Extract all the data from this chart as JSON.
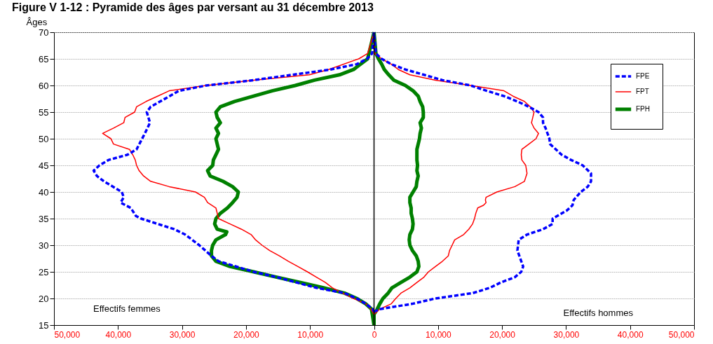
{
  "chart_data": {
    "type": "line",
    "orientation": "horizontal",
    "title": "Figure V 1-12 : Pyramide des âges par versant au 31 décembre 2013",
    "ylabel": "Âges",
    "annotations": [
      "Effectifs femmes",
      "Effectifs hommes"
    ],
    "xlim": [
      -50000,
      50000
    ],
    "xticks": [
      {
        "value": -50000,
        "label": "50,000"
      },
      {
        "value": -40000,
        "label": "40,000"
      },
      {
        "value": -30000,
        "label": "30,000"
      },
      {
        "value": -20000,
        "label": "20,000"
      },
      {
        "value": -10000,
        "label": "10,000"
      },
      0,
      {
        "value": 10000,
        "label": "10,000"
      },
      {
        "value": 20000,
        "label": "20,000"
      },
      {
        "value": 30000,
        "label": "30,000"
      },
      {
        "value": 40000,
        "label": "40,000"
      },
      {
        "value": 50000,
        "label": "50,000"
      }
    ],
    "ylim": [
      15,
      70
    ],
    "yticks": [
      15,
      20,
      25,
      30,
      35,
      40,
      45,
      50,
      55,
      60,
      65,
      70
    ],
    "grid": "y",
    "legend": "top right",
    "marker": "none",
    "ref_lines": [
      {
        "axis": "x",
        "value": 0,
        "color": "#000000"
      }
    ],
    "series": [
      {
        "name": "FPE",
        "color": "#0000ff",
        "line_style": "dashed",
        "x": [
          70,
          66,
          65,
          64,
          63,
          61,
          60,
          59,
          57,
          56,
          55,
          53,
          51,
          48,
          47,
          46,
          45,
          44,
          43,
          42,
          40,
          39,
          38,
          37,
          35.5,
          35,
          33,
          32,
          30,
          28,
          27,
          25,
          24,
          22,
          21,
          20,
          19,
          18,
          17.5
        ],
        "values": [
          0,
          -300,
          -1100,
          -2700,
          -6800,
          -18800,
          -26200,
          -30500,
          -33400,
          -34900,
          -35500,
          -35000,
          -35800,
          -37100,
          -38500,
          -41500,
          -42900,
          -43800,
          -43300,
          -42200,
          -39400,
          -39100,
          -39600,
          -38000,
          -37200,
          -36400,
          -31200,
          -29500,
          -27300,
          -25400,
          -24300,
          -18800,
          -15200,
          -9000,
          -4600,
          -2700,
          -1300,
          -200,
          0
        ]
      },
      {
        "color": "#0000ff",
        "line_style": "dashed",
        "x": [
          17.5,
          18,
          19,
          20,
          21,
          22,
          23,
          24,
          25,
          26,
          27,
          29,
          31,
          32,
          33,
          34,
          35,
          36.5,
          37.5,
          38.5,
          40,
          41,
          42,
          43.5,
          45,
          46,
          47,
          49,
          50,
          52,
          53,
          54,
          55,
          56,
          57,
          58,
          59,
          60,
          61,
          62,
          63,
          64,
          65,
          66,
          70
        ],
        "values": [
          0,
          900,
          6000,
          9600,
          15400,
          18100,
          19800,
          22000,
          23000,
          23300,
          23000,
          22400,
          22600,
          23900,
          26400,
          27900,
          27900,
          30100,
          31000,
          31200,
          32300,
          33400,
          33900,
          33900,
          32600,
          30800,
          29300,
          27500,
          27400,
          26800,
          26400,
          26400,
          25700,
          24200,
          22400,
          20300,
          17600,
          15100,
          10700,
          7800,
          4900,
          2700,
          1200,
          300,
          0
        ]
      },
      {
        "name": "FPT",
        "color": "#ff0000",
        "line_style": "solid",
        "x": [
          70,
          66,
          65,
          63,
          62,
          61,
          60,
          59,
          58,
          57,
          56,
          55,
          54,
          53,
          52,
          51,
          50,
          49,
          48,
          47,
          46,
          45,
          44,
          43,
          42,
          41,
          40,
          39,
          38,
          37,
          35,
          34,
          33,
          32,
          31,
          30,
          29,
          28,
          27,
          26,
          25,
          24,
          23,
          22,
          21,
          20,
          19,
          18,
          17
        ],
        "values": [
          0,
          -1000,
          -2400,
          -7100,
          -10100,
          -18800,
          -26200,
          -32000,
          -33800,
          -35600,
          -37100,
          -37400,
          -38900,
          -39100,
          -40700,
          -42400,
          -41100,
          -40700,
          -38200,
          -37700,
          -37300,
          -37100,
          -36700,
          -36000,
          -34900,
          -32000,
          -27900,
          -26500,
          -26000,
          -24700,
          -24300,
          -22500,
          -20700,
          -19200,
          -18500,
          -17500,
          -16300,
          -14800,
          -13400,
          -11900,
          -10400,
          -9000,
          -7600,
          -6500,
          -4900,
          -3200,
          -1300,
          -500,
          0
        ]
      },
      {
        "color": "#ff0000",
        "line_style": "solid",
        "x": [
          17,
          18,
          19,
          20,
          21,
          22,
          23,
          24,
          25,
          26,
          27,
          28,
          29,
          30,
          31,
          31.5,
          32,
          33,
          34,
          35,
          36,
          37,
          37.5,
          38,
          38.5,
          39,
          40,
          41,
          42,
          43.5,
          45,
          46,
          47,
          48,
          49,
          50,
          51,
          52,
          53,
          54,
          55,
          56,
          57,
          58,
          59,
          60,
          61,
          62,
          63,
          64,
          65,
          66,
          70
        ],
        "values": [
          0,
          900,
          2700,
          3400,
          4200,
          5600,
          6700,
          7800,
          8500,
          9600,
          10700,
          11600,
          11800,
          12200,
          12600,
          13300,
          14000,
          14800,
          15400,
          15700,
          15900,
          16200,
          17100,
          17500,
          17400,
          17500,
          19200,
          22000,
          23500,
          23900,
          23700,
          23100,
          23000,
          23100,
          24200,
          25300,
          25700,
          25000,
          24600,
          24800,
          25000,
          24400,
          23500,
          21700,
          20300,
          15100,
          9600,
          5600,
          3800,
          2700,
          1200,
          100,
          0
        ]
      },
      {
        "name": "FPH",
        "color": "#008000",
        "line_style": "solid",
        "x": [
          70,
          65,
          64,
          63,
          62,
          61,
          60,
          59,
          58,
          57,
          56,
          55,
          54,
          53,
          52,
          51,
          50,
          49,
          48,
          47,
          46,
          45,
          44,
          43,
          42,
          41,
          40,
          39,
          38,
          37,
          36,
          35,
          34,
          33,
          32.5,
          32,
          31,
          30,
          29,
          28,
          27,
          26,
          25,
          24,
          23,
          22,
          21,
          20,
          19,
          18,
          15
        ],
        "values": [
          0,
          -1000,
          -2100,
          -3200,
          -5400,
          -9300,
          -12300,
          -15900,
          -18800,
          -21800,
          -24000,
          -24700,
          -24500,
          -24000,
          -24700,
          -24300,
          -24700,
          -24500,
          -24300,
          -24700,
          -25100,
          -25200,
          -26000,
          -25600,
          -23600,
          -22100,
          -21200,
          -21400,
          -22100,
          -22900,
          -24000,
          -24700,
          -24900,
          -24500,
          -23000,
          -23200,
          -24700,
          -25200,
          -25400,
          -25400,
          -24700,
          -22500,
          -18800,
          -15200,
          -11500,
          -7900,
          -4600,
          -2700,
          -1300,
          -400,
          0
        ]
      },
      {
        "color": "#008000",
        "line_style": "solid",
        "x": [
          15,
          17,
          18,
          19,
          20,
          21,
          22,
          23,
          24,
          25,
          26,
          27,
          28,
          29,
          30,
          31,
          32,
          33,
          34,
          35,
          36,
          37,
          38,
          39,
          40,
          41,
          42,
          43,
          44,
          45,
          46,
          47,
          48,
          49,
          50,
          51,
          52,
          53,
          54,
          55,
          56,
          57,
          58,
          59,
          60,
          61,
          62,
          63,
          64,
          65,
          66,
          70
        ],
        "values": [
          0,
          0,
          500,
          900,
          1400,
          2200,
          2800,
          4200,
          5600,
          6700,
          7000,
          6900,
          6600,
          6000,
          5600,
          5500,
          5600,
          6000,
          6100,
          6000,
          5800,
          5800,
          5600,
          5600,
          6100,
          6600,
          6700,
          6900,
          6700,
          6800,
          6700,
          6700,
          6700,
          6900,
          7100,
          7200,
          7400,
          7200,
          7700,
          7700,
          7600,
          7200,
          6900,
          6100,
          4900,
          3100,
          2300,
          1600,
          1200,
          700,
          300,
          0
        ]
      }
    ]
  }
}
